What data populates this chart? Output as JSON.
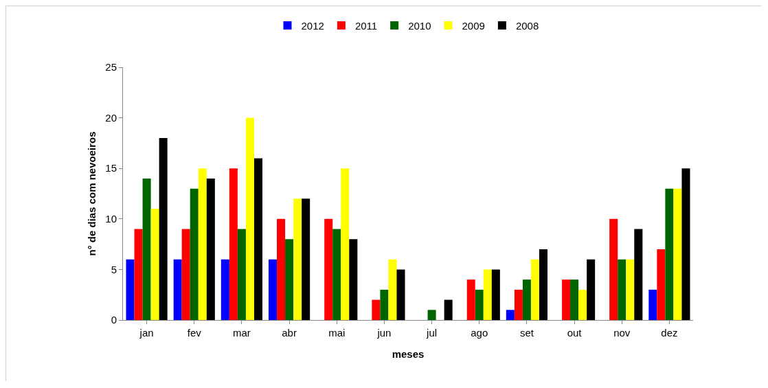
{
  "chart_data": {
    "type": "bar",
    "xlabel": "meses",
    "ylabel": "n° de dias com nevoeiros",
    "categories": [
      "jan",
      "fev",
      "mar",
      "abr",
      "mai",
      "jun",
      "jul",
      "ago",
      "set",
      "out",
      "nov",
      "dez"
    ],
    "series": [
      {
        "name": "2012",
        "color": "#0000ff",
        "values": [
          6,
          6,
          6,
          6,
          0,
          0,
          0,
          0,
          1,
          0,
          0,
          3
        ]
      },
      {
        "name": "2011",
        "color": "#ff0000",
        "values": [
          9,
          9,
          15,
          10,
          10,
          2,
          0,
          4,
          3,
          4,
          10,
          7
        ]
      },
      {
        "name": "2010",
        "color": "#006400",
        "values": [
          14,
          13,
          9,
          8,
          9,
          3,
          1,
          3,
          4,
          4,
          6,
          13
        ]
      },
      {
        "name": "2009",
        "color": "#ffff00",
        "values": [
          11,
          15,
          20,
          12,
          15,
          6,
          0,
          5,
          6,
          3,
          6,
          13
        ]
      },
      {
        "name": "2008",
        "color": "#000000",
        "values": [
          18,
          14,
          16,
          12,
          8,
          5,
          2,
          5,
          7,
          6,
          9,
          15
        ]
      }
    ],
    "ylim": [
      0,
      25
    ],
    "yticks": [
      0,
      5,
      10,
      15,
      20,
      25
    ],
    "grid": false,
    "legend": "top"
  }
}
